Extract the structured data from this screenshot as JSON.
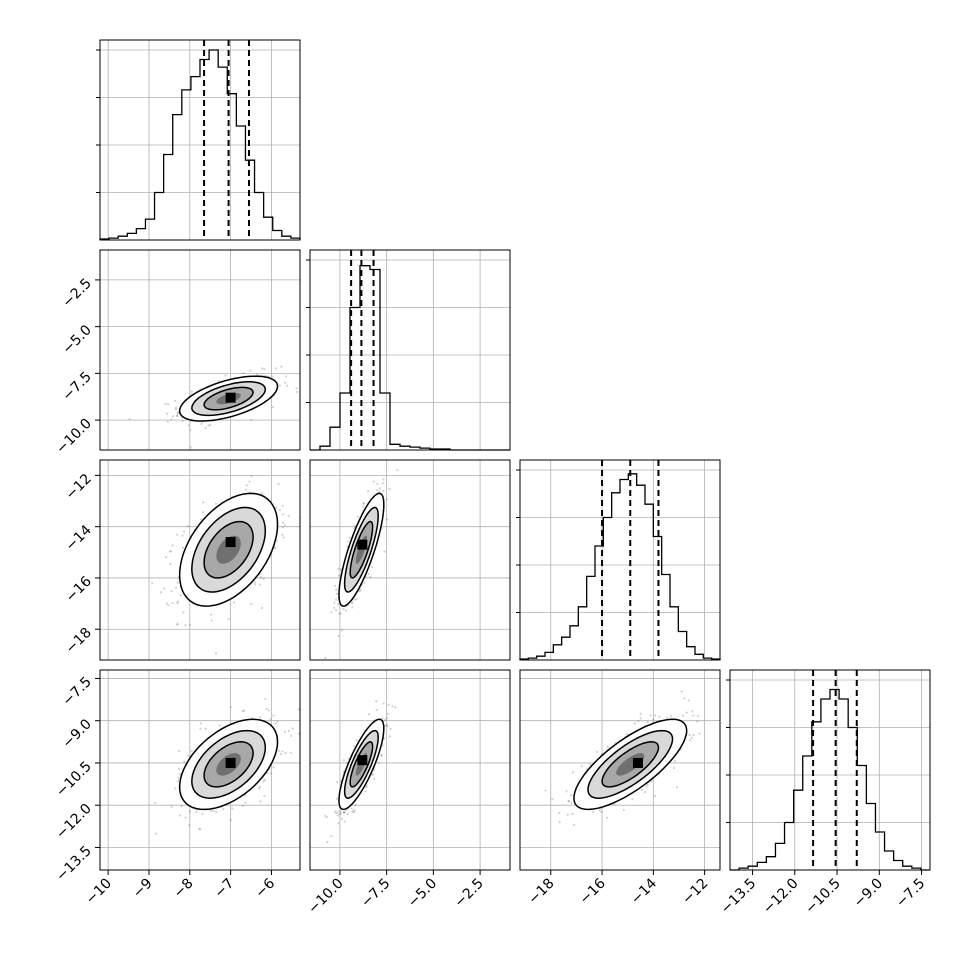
{
  "chart_data": {
    "type": "corner",
    "grid": true,
    "parameters": [
      {
        "range": [
          -10.2,
          -5.3
        ],
        "ticks": [
          -10,
          -9,
          -8,
          -7,
          -6
        ],
        "tick_labels": [
          "−10",
          "−9",
          "−8",
          "−7",
          "−6"
        ],
        "quantiles": [
          -7.65,
          -7.05,
          -6.55
        ],
        "hist": [
          0.005,
          0.01,
          0.02,
          0.035,
          0.06,
          0.11,
          0.25,
          0.45,
          0.66,
          0.79,
          0.86,
          0.95,
          1.0,
          0.91,
          0.77,
          0.6,
          0.42,
          0.25,
          0.12,
          0.05,
          0.02,
          0.01
        ]
      },
      {
        "range": [
          -11.6,
          -0.9
        ],
        "ticks": [
          -10,
          -7.5,
          -5,
          -2.5
        ],
        "tick_labels": [
          "−10.0",
          "−7.5",
          "−5.0",
          "−2.5"
        ],
        "quantiles": [
          -9.4,
          -8.85,
          -8.2
        ],
        "hist": [
          0.0,
          0.02,
          0.12,
          0.3,
          0.75,
          0.97,
          0.95,
          0.3,
          0.03,
          0.02,
          0.015,
          0.01,
          0.005,
          0.005,
          0.0,
          0.0,
          0.0,
          0.0,
          0.0,
          0.0
        ]
      },
      {
        "range": [
          -19.2,
          -11.4
        ],
        "ticks": [
          -18,
          -16,
          -14,
          -12
        ],
        "tick_labels": [
          "−18",
          "−16",
          "−14",
          "−12"
        ],
        "quantiles": [
          -16.0,
          -14.9,
          -13.8
        ],
        "hist": [
          0.005,
          0.01,
          0.02,
          0.04,
          0.08,
          0.12,
          0.18,
          0.28,
          0.44,
          0.6,
          0.75,
          0.88,
          0.95,
          0.98,
          0.92,
          0.82,
          0.65,
          0.45,
          0.28,
          0.15,
          0.07,
          0.03,
          0.01,
          0.005
        ]
      },
      {
        "range": [
          -14.3,
          -7.2
        ],
        "ticks": [
          -13.5,
          -12,
          -10.5,
          -9,
          -7.5
        ],
        "tick_labels": [
          "−13.5",
          "−12.0",
          "−10.5",
          "−9.0",
          "−7.5"
        ],
        "quantiles": [
          -11.35,
          -10.55,
          -9.8
        ],
        "hist": [
          0.0,
          0.01,
          0.02,
          0.04,
          0.07,
          0.14,
          0.25,
          0.42,
          0.6,
          0.78,
          0.9,
          0.95,
          0.9,
          0.75,
          0.55,
          0.35,
          0.2,
          0.1,
          0.05,
          0.02,
          0.01,
          0.0
        ]
      }
    ],
    "pairs": [
      {
        "row": 1,
        "col": 0,
        "mean": [
          -7.05,
          -8.85
        ],
        "sd": [
          0.6,
          0.6
        ],
        "rho": 0.55,
        "peak": [
          -7.0,
          -8.8
        ]
      },
      {
        "row": 2,
        "col": 0,
        "mean": [
          -7.05,
          -14.9
        ],
        "sd": [
          0.6,
          1.1
        ],
        "rho": 0.45,
        "peak": [
          -7.0,
          -14.6
        ]
      },
      {
        "row": 2,
        "col": 1,
        "mean": [
          -8.85,
          -14.9
        ],
        "sd": [
          0.6,
          1.1
        ],
        "rho": 0.8,
        "peak": [
          -8.8,
          -14.7
        ]
      },
      {
        "row": 3,
        "col": 0,
        "mean": [
          -7.05,
          -10.55
        ],
        "sd": [
          0.6,
          0.8
        ],
        "rho": 0.5,
        "peak": [
          -7.0,
          -10.5
        ]
      },
      {
        "row": 3,
        "col": 1,
        "mean": [
          -8.85,
          -10.55
        ],
        "sd": [
          0.6,
          0.8
        ],
        "rho": 0.8,
        "peak": [
          -8.8,
          -10.4
        ]
      },
      {
        "row": 3,
        "col": 2,
        "mean": [
          -14.9,
          -10.55
        ],
        "sd": [
          1.1,
          0.8
        ],
        "rho": 0.75,
        "peak": [
          -14.6,
          -10.5
        ]
      }
    ],
    "contour_levels_sigma": [
      0.5,
      1.0,
      1.5,
      2.0
    ]
  }
}
